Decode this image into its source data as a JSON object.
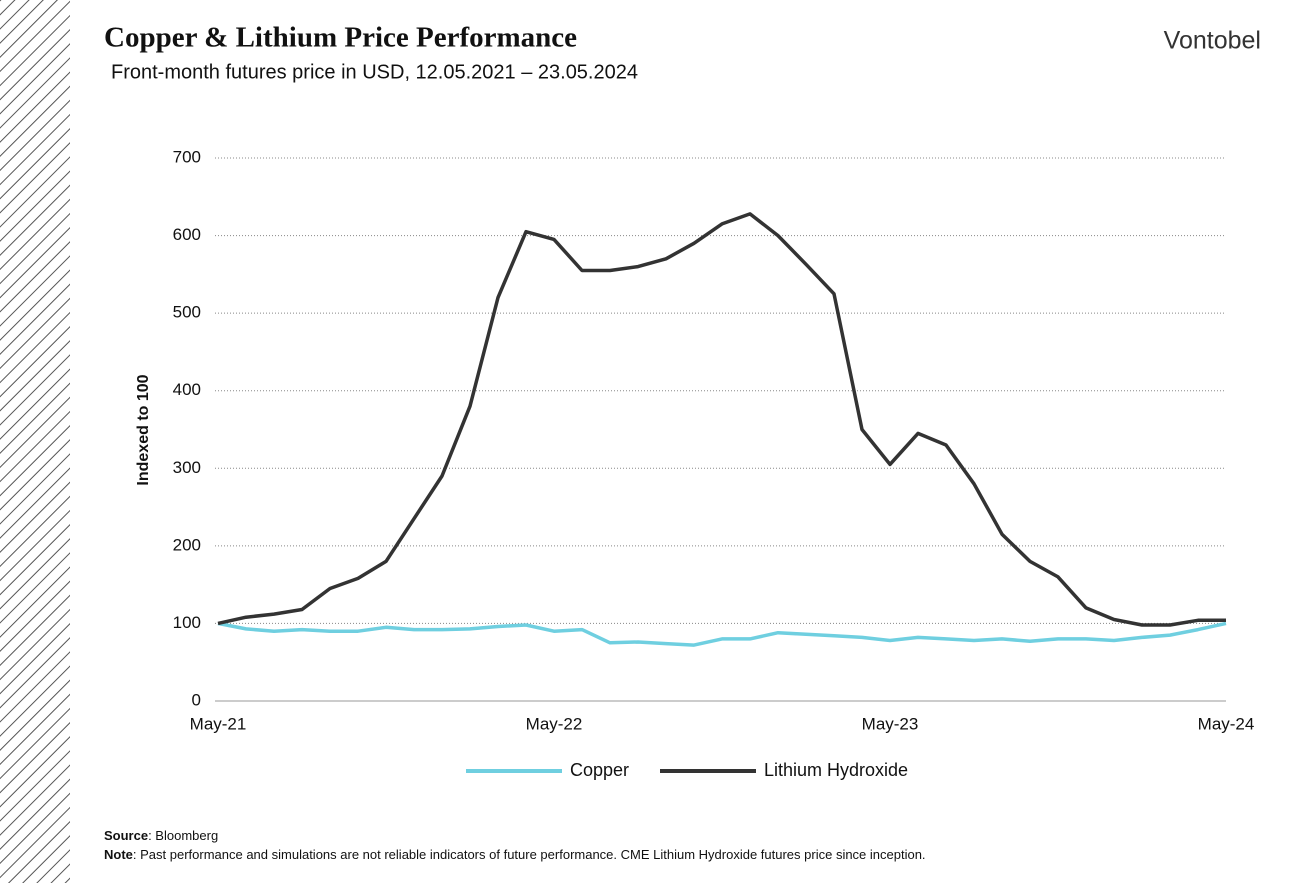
{
  "brand": "Vontobel",
  "chart_data": {
    "type": "line",
    "title": "Copper & Lithium Price Performance",
    "subtitle": "Front-month futures price in USD, 12.05.2021 – 23.05.2024",
    "y_label": "Indexed to 100",
    "categories": [
      "May-21",
      null,
      null,
      null,
      null,
      null,
      null,
      null,
      null,
      null,
      null,
      null,
      "May-22",
      null,
      null,
      null,
      null,
      null,
      null,
      null,
      null,
      null,
      null,
      null,
      "May-23",
      null,
      null,
      null,
      null,
      null,
      null,
      null,
      null,
      null,
      null,
      null,
      "May-24"
    ],
    "series": [
      {
        "name": "Copper",
        "color": "#6fcfe0",
        "values": [
          100,
          93,
          90,
          92,
          90,
          90,
          95,
          92,
          92,
          93,
          96,
          98,
          90,
          92,
          75,
          76,
          74,
          72,
          80,
          80,
          88,
          86,
          84,
          82,
          78,
          82,
          80,
          78,
          80,
          77,
          80,
          80,
          78,
          82,
          85,
          92,
          100
        ]
      },
      {
        "name": "Lithium Hydroxide",
        "color": "#333333",
        "values": [
          100,
          108,
          112,
          118,
          145,
          158,
          180,
          235,
          290,
          380,
          520,
          605,
          595,
          555,
          555,
          560,
          570,
          590,
          615,
          628,
          600,
          563,
          525,
          350,
          305,
          345,
          330,
          280,
          215,
          180,
          160,
          120,
          105,
          98,
          98,
          104,
          104
        ]
      }
    ],
    "ylim": [
      0,
      700
    ],
    "yticks": [
      0,
      100,
      200,
      300,
      400,
      500,
      600,
      700
    ],
    "grid": true,
    "legend": "bottom"
  },
  "footnotes": [
    {
      "label": "Source",
      "text": ": Bloomberg"
    },
    {
      "label": "Note",
      "text": ": Past performance and simulations are not reliable indicators of future performance. CME Lithium Hydroxide futures price since inception."
    }
  ]
}
